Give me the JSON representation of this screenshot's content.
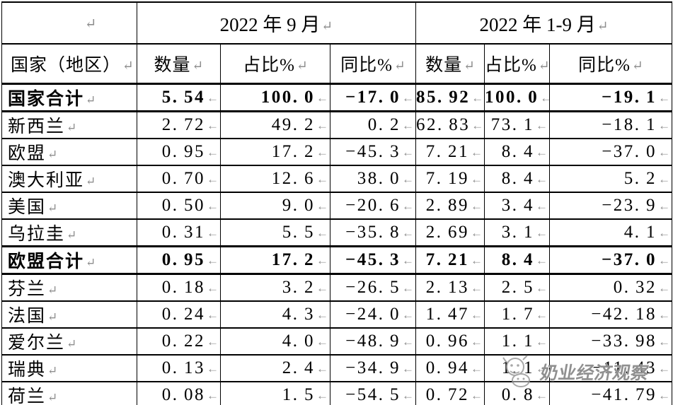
{
  "table": {
    "period_headers": [
      {
        "label": "2022 年 9 月"
      },
      {
        "label": "2022 年 1-9 月"
      }
    ],
    "column_headers": {
      "country": "国家（地区）",
      "quantity": "数量",
      "share": "占比%",
      "yoy": "同比%"
    },
    "marks": {
      "cell_end": "↵",
      "num_end": "←"
    },
    "rows": [
      {
        "name": "国家合计",
        "bold": true,
        "normal_cells": [
          2
        ],
        "values": [
          "5.54",
          "100.0",
          "-17.0",
          "85.92",
          "100.0",
          "-19.1"
        ]
      },
      {
        "name": "新西兰",
        "bold": false,
        "values": [
          "2.72",
          "49.2",
          "0.2",
          "62.83",
          "73.1",
          "-18.1"
        ]
      },
      {
        "name": "欧盟",
        "bold": false,
        "values": [
          "0.95",
          "17.2",
          "-45.3",
          "7.21",
          "8.4",
          "-37.0"
        ]
      },
      {
        "name": "澳大利亚",
        "bold": false,
        "values": [
          "0.70",
          "12.6",
          "38.0",
          "7.19",
          "8.4",
          "5.2"
        ]
      },
      {
        "name": "美国",
        "bold": false,
        "values": [
          "0.50",
          "9.0",
          "-20.6",
          "2.89",
          "3.4",
          "-23.9"
        ]
      },
      {
        "name": "乌拉圭",
        "bold": false,
        "values": [
          "0.31",
          "5.5",
          "-35.8",
          "2.69",
          "3.1",
          "4.1"
        ]
      },
      {
        "name": "欧盟合计",
        "bold": true,
        "values": [
          "0.95",
          "17.2",
          "-45.3",
          "7.21",
          "8.4",
          "-37.0"
        ]
      },
      {
        "name": "芬兰",
        "bold": false,
        "values": [
          "0.18",
          "3.2",
          "-26.5",
          "2.13",
          "2.5",
          "0.32"
        ]
      },
      {
        "name": "法国",
        "bold": false,
        "values": [
          "0.24",
          "4.3",
          "-24.0",
          "1.47",
          "1.7",
          "-42.18"
        ]
      },
      {
        "name": "爱尔兰",
        "bold": false,
        "values": [
          "0.22",
          "4.0",
          "-48.9",
          "0.96",
          "1.1",
          "-33.98"
        ]
      },
      {
        "name": "瑞典",
        "bold": false,
        "values": [
          "0.13",
          "2.4",
          "-34.9",
          "0.94",
          "1.1",
          "-11.43"
        ]
      },
      {
        "name": "荷兰",
        "bold": false,
        "values": [
          "0.08",
          "1.5",
          "-54.5",
          "0.72",
          "0.8",
          "-41.79"
        ]
      }
    ]
  },
  "watermark": {
    "text": "奶业经济观察",
    "logo_icon": "cow-mascot-icon"
  },
  "colors": {
    "border": "#000000",
    "text": "#000000",
    "mark": "#8e8e8e",
    "watermark": "#909090",
    "background": "#ffffff"
  }
}
